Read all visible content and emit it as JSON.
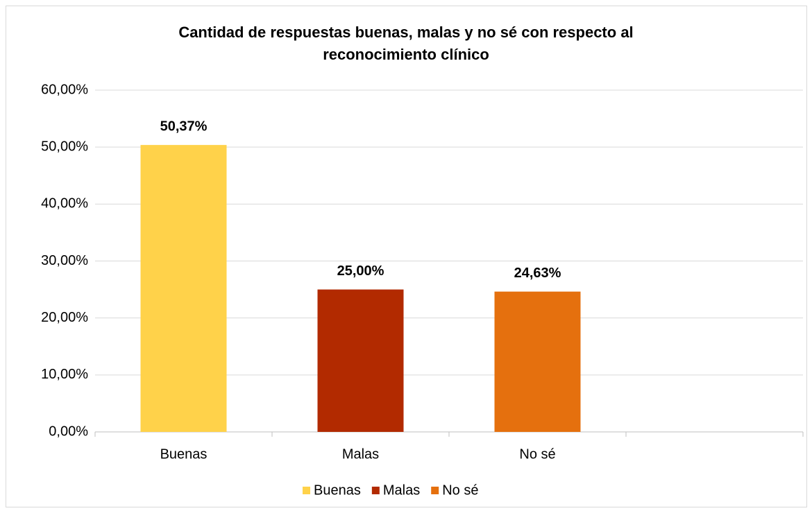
{
  "chart_data": {
    "type": "bar",
    "title": [
      "Cantidad de respuestas buenas, malas y no sé con respecto al",
      "reconocimiento clínico"
    ],
    "categories": [
      "Buenas",
      "Malas",
      "No sé",
      null
    ],
    "values": [
      50.37,
      25.0,
      24.63,
      null
    ],
    "value_labels": [
      "50,37%",
      "25,00%",
      "24,63%",
      null
    ],
    "colors": [
      "#ffd24a",
      "#b22a00",
      "#e5700e",
      null
    ],
    "ylim": [
      0,
      60
    ],
    "yticks": [
      {
        "value": 0,
        "label": "0,00%"
      },
      {
        "value": 10,
        "label": "10,00%"
      },
      {
        "value": 20,
        "label": "20,00%"
      },
      {
        "value": 30,
        "label": "30,00%"
      },
      {
        "value": 40,
        "label": "40,00%"
      },
      {
        "value": 50,
        "label": "50,00%"
      },
      {
        "value": 60,
        "label": "60,00%"
      }
    ],
    "grid": true
  }
}
